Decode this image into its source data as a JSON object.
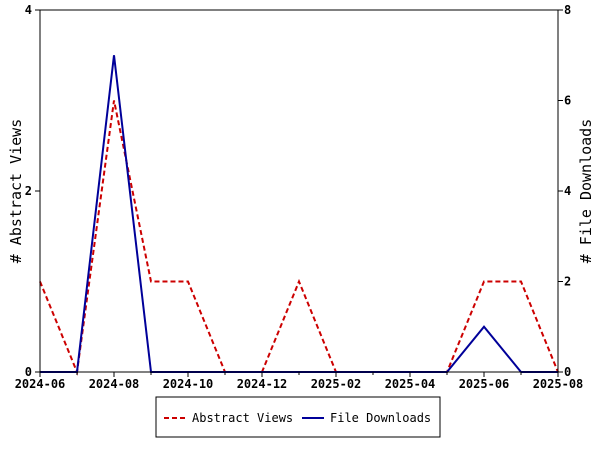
{
  "chart_data": {
    "type": "line",
    "title": "",
    "xlabel": "",
    "x": [
      "2024-06",
      "2024-07",
      "2024-08",
      "2024-09",
      "2024-10",
      "2024-11",
      "2024-12",
      "2025-01",
      "2025-02",
      "2025-03",
      "2025-04",
      "2025-05",
      "2025-06",
      "2025-07",
      "2025-08"
    ],
    "x_tick_labels": [
      "2024-06",
      "2024-08",
      "2024-10",
      "2024-12",
      "2025-02",
      "2025-04",
      "2025-06",
      "2025-08"
    ],
    "y_left": {
      "label": "# Abstract Views",
      "ylim": [
        0,
        4
      ],
      "ticks": [
        "0",
        "2",
        "4"
      ]
    },
    "y_right": {
      "label": "# File Downloads",
      "ylim": [
        0,
        8
      ],
      "ticks": [
        "0",
        "2",
        "4",
        "6",
        "8"
      ]
    },
    "grid": false,
    "legend_position": "bottom",
    "series": [
      {
        "name": "Abstract Views",
        "axis": "left",
        "color": "#cc0000",
        "dash": "dashed",
        "values": [
          1,
          0,
          3,
          1,
          1,
          0,
          0,
          1,
          0,
          0,
          0,
          0,
          1,
          1,
          0
        ]
      },
      {
        "name": "File Downloads",
        "axis": "right",
        "color": "#000099",
        "dash": "solid",
        "values": [
          0,
          0,
          7,
          0,
          0,
          0,
          0,
          0,
          0,
          0,
          0,
          0,
          1,
          0,
          0
        ]
      }
    ]
  }
}
